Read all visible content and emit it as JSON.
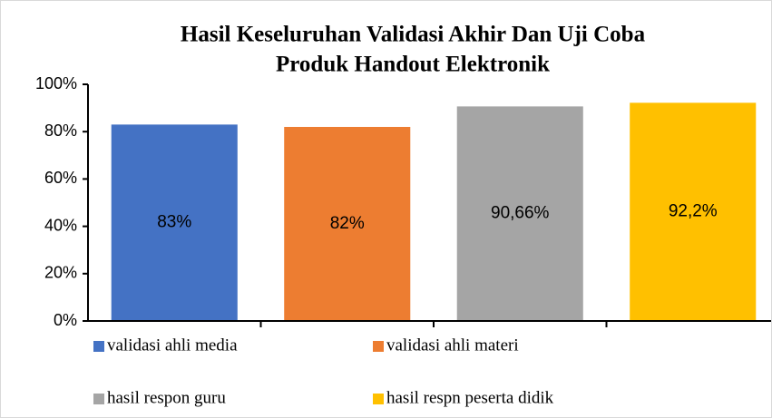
{
  "chart_data": {
    "type": "bar",
    "title": [
      "Hasil Keseluruhan Validasi Akhir Dan Uji Coba",
      "Produk Handout Elektronik"
    ],
    "categories": [
      "validasi ahli media",
      "validasi ahli materi",
      "hasil respon guru",
      "hasil respn peserta didik"
    ],
    "values": [
      83,
      82,
      90.66,
      92.2
    ],
    "value_labels": [
      "83%",
      "82%",
      "90,66%",
      "92,2%"
    ],
    "colors": [
      "#4472c4",
      "#ed7d31",
      "#a5a5a5",
      "#ffc000"
    ],
    "ylim": [
      0,
      100
    ],
    "yticks": [
      {
        "value": 0,
        "label": "0%"
      },
      {
        "value": 20,
        "label": "20%"
      },
      {
        "value": 40,
        "label": "40%"
      },
      {
        "value": 60,
        "label": "60%"
      },
      {
        "value": 80,
        "label": "80%"
      },
      {
        "value": 100,
        "label": "100%"
      }
    ],
    "legend": "bottom"
  }
}
